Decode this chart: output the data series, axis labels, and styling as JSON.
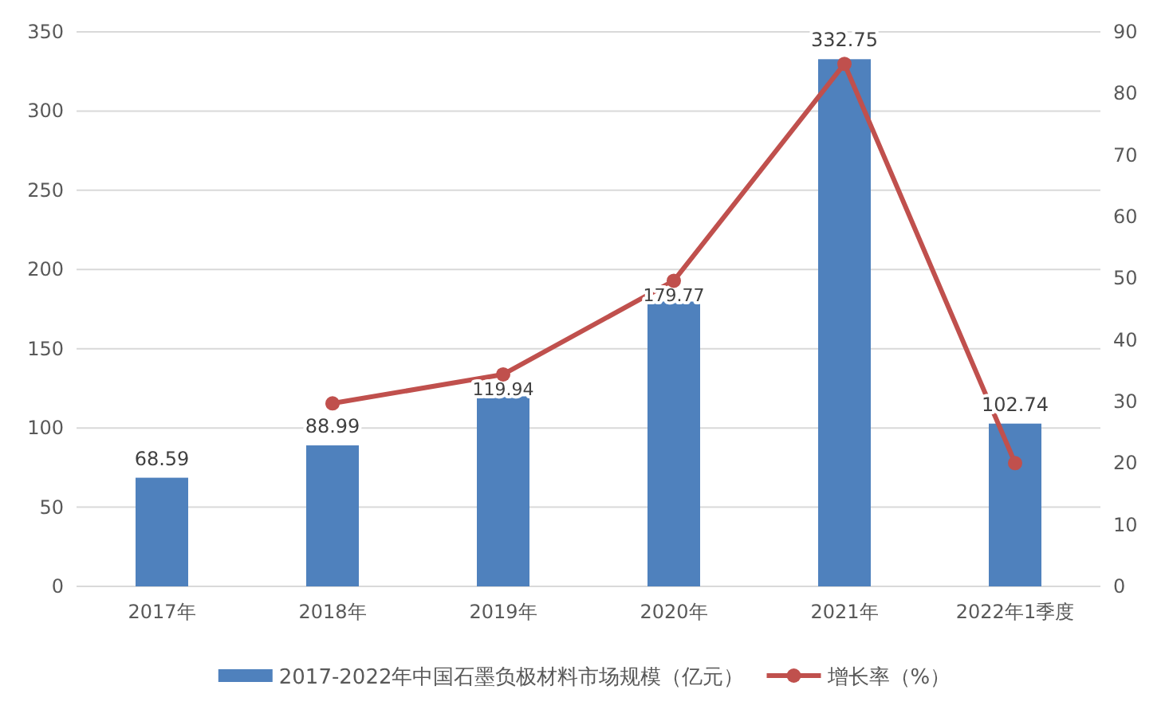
{
  "chart_data": {
    "type": "bar",
    "categories": [
      "2017年",
      "2018年",
      "2019年",
      "2020年",
      "2021年",
      "2022年1季度"
    ],
    "series": [
      {
        "name": "2017-2022年中国石墨负极材料市场规模（亿元）",
        "color": "#4f81bd",
        "values": [
          68.59,
          88.99,
          119.94,
          179.77,
          332.75,
          102.74
        ],
        "value_labels": [
          "68.59",
          "88.99",
          "119.94",
          "179.77",
          "332.75",
          "102.74"
        ]
      },
      {
        "name": "增长率（%）",
        "type": "line",
        "axis": "y2",
        "color": "#c0504d",
        "marker": "circle",
        "values": [
          null,
          29.7,
          34.4,
          49.6,
          84.8,
          20.0
        ]
      }
    ],
    "ylim": [
      0,
      350
    ],
    "yticks": [
      0,
      50,
      100,
      150,
      200,
      250,
      300,
      350
    ],
    "y2lim": [
      0,
      90
    ],
    "y2ticks": [
      0,
      10,
      20,
      30,
      40,
      50,
      60,
      70,
      80,
      90
    ],
    "grid": "y",
    "legend": "bottom"
  }
}
